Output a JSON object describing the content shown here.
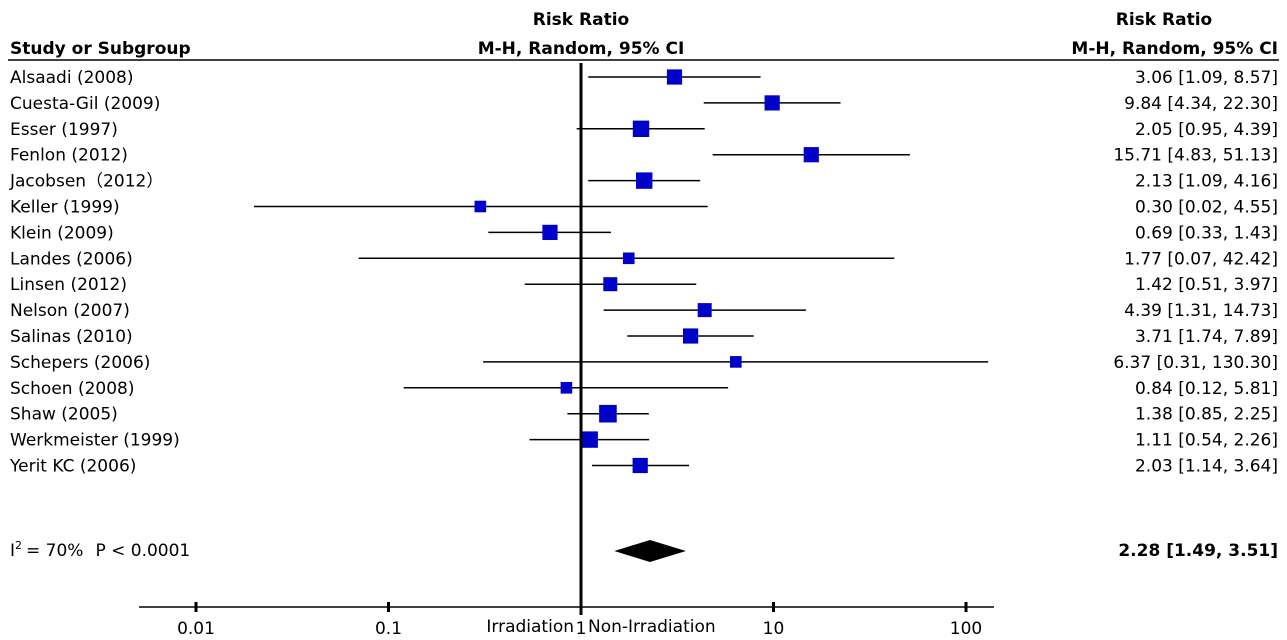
{
  "chart_data": {
    "type": "forest",
    "scale": "log",
    "x_ticks": [
      0.01,
      0.1,
      1,
      10,
      100
    ],
    "x_tick_labels": [
      "0.01",
      "0.1",
      "1",
      "10",
      "100"
    ],
    "xlim": [
      0.005,
      150
    ],
    "headers": {
      "study": "Study or Subgroup",
      "plot_line1": "Risk Ratio",
      "plot_line2": "M-H, Random, 95% CI",
      "value_line1": "Risk Ratio",
      "value_line2": "M-H, Random, 95% CI"
    },
    "studies": [
      {
        "label": "Alsaadi (2008)",
        "rr": 3.06,
        "lo": 1.09,
        "hi": 8.57,
        "text": "3.06 [1.09, 8.57]",
        "weight": 6
      },
      {
        "label": "Cuesta-Gil (2009)",
        "rr": 9.84,
        "lo": 4.34,
        "hi": 22.3,
        "text": "9.84 [4.34, 22.30]",
        "weight": 6
      },
      {
        "label": "Esser (1997)",
        "rr": 2.05,
        "lo": 0.95,
        "hi": 4.39,
        "text": "2.05 [0.95, 4.39]",
        "weight": 7
      },
      {
        "label": "Fenlon (2012)",
        "rr": 15.71,
        "lo": 4.83,
        "hi": 51.13,
        "text": "15.71 [4.83, 51.13]",
        "weight": 6
      },
      {
        "label": "Jacobsen（2012）",
        "rr": 2.13,
        "lo": 1.09,
        "hi": 4.16,
        "text": "2.13 [1.09, 4.16]",
        "weight": 7
      },
      {
        "label": "Keller (1999)",
        "rr": 0.3,
        "lo": 0.02,
        "hi": 4.55,
        "text": "0.30 [0.02, 4.55]",
        "weight": 3
      },
      {
        "label": "Klein (2009)",
        "rr": 0.69,
        "lo": 0.33,
        "hi": 1.43,
        "text": "0.69 [0.33, 1.43]",
        "weight": 6
      },
      {
        "label": "Landes (2006)",
        "rr": 1.77,
        "lo": 0.07,
        "hi": 42.42,
        "text": "1.77 [0.07, 42.42]",
        "weight": 3
      },
      {
        "label": "Linsen (2012)",
        "rr": 1.42,
        "lo": 0.51,
        "hi": 3.97,
        "text": "1.42 [0.51, 3.97]",
        "weight": 5
      },
      {
        "label": "Nelson (2007)",
        "rr": 4.39,
        "lo": 1.31,
        "hi": 14.73,
        "text": "4.39 [1.31, 14.73]",
        "weight": 5
      },
      {
        "label": "Salinas (2010)",
        "rr": 3.71,
        "lo": 1.74,
        "hi": 7.89,
        "text": "3.71 [1.74, 7.89]",
        "weight": 6
      },
      {
        "label": "Schepers (2006)",
        "rr": 6.37,
        "lo": 0.31,
        "hi": 130.3,
        "text": "6.37 [0.31, 130.30]",
        "weight": 3
      },
      {
        "label": "Schoen (2008)",
        "rr": 0.84,
        "lo": 0.12,
        "hi": 5.81,
        "text": "0.84 [0.12, 5.81]",
        "weight": 3
      },
      {
        "label": "Shaw (2005)",
        "rr": 1.38,
        "lo": 0.85,
        "hi": 2.25,
        "text": "1.38 [0.85, 2.25]",
        "weight": 8
      },
      {
        "label": "Werkmeister (1999)",
        "rr": 1.11,
        "lo": 0.54,
        "hi": 2.26,
        "text": "1.11 [0.54, 2.26]",
        "weight": 7
      },
      {
        "label": "Yerit KC (2006)",
        "rr": 2.03,
        "lo": 1.14,
        "hi": 3.64,
        "text": "2.03 [1.14, 3.64]",
        "weight": 6
      }
    ],
    "pooled": {
      "rr": 2.28,
      "lo": 1.49,
      "hi": 3.51,
      "text": "2.28 [1.49, 3.51]"
    },
    "heterogeneity": {
      "i2_text": "I",
      "i2_sup": "2",
      "i2_value": "= 70%",
      "p_text": "P < 0.0001"
    },
    "favours_left": "Irradiation",
    "favours_right": "Non-Irradiation",
    "colors": {
      "marker": "#0000c8",
      "line": "#000000",
      "diamond": "#000000"
    }
  }
}
